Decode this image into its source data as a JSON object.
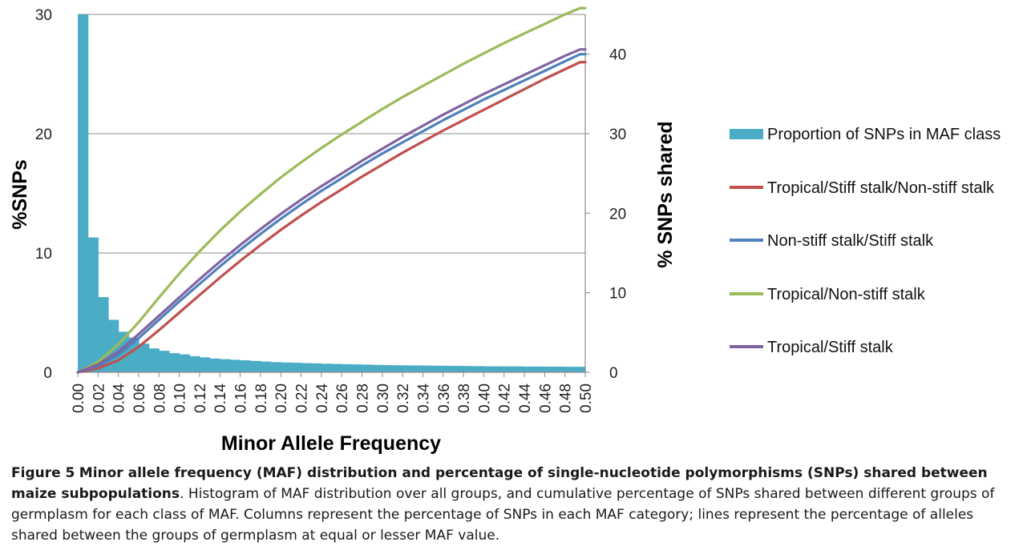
{
  "chart_data": {
    "type": "bar+line",
    "xlabel": "Minor Allele Frequency",
    "ylabel": "%SNPs",
    "y2label": "% SNPs shared",
    "ylim": [
      0,
      30
    ],
    "y2lim": [
      0,
      45
    ],
    "yticks": [
      0,
      10,
      20,
      30
    ],
    "y2ticks": [
      0,
      10,
      20,
      30,
      40
    ],
    "xlim": [
      0,
      0.5
    ],
    "xticks": [
      "0.00",
      "0.02",
      "0.04",
      "0.06",
      "0.08",
      "0.10",
      "0.12",
      "0.14",
      "0.16",
      "0.18",
      "0.20",
      "0.22",
      "0.24",
      "0.26",
      "0.28",
      "0.30",
      "0.32",
      "0.34",
      "0.36",
      "0.38",
      "0.40",
      "0.42",
      "0.44",
      "0.46",
      "0.48",
      "0.50"
    ],
    "grid": "horizontal",
    "legend_position": "right",
    "bars": {
      "name": "Proportion of SNPs in MAF class",
      "color": "#4bacc6",
      "bin_width": 0.01,
      "x_start": 0.0,
      "values": [
        30,
        11.3,
        6.3,
        4.4,
        3.4,
        2.9,
        2.4,
        2.0,
        1.8,
        1.6,
        1.5,
        1.35,
        1.25,
        1.15,
        1.1,
        1.05,
        1.0,
        0.95,
        0.9,
        0.85,
        0.82,
        0.8,
        0.77,
        0.75,
        0.72,
        0.7,
        0.68,
        0.66,
        0.64,
        0.62,
        0.6,
        0.59,
        0.58,
        0.57,
        0.56,
        0.55,
        0.54,
        0.53,
        0.52,
        0.51,
        0.5,
        0.5,
        0.49,
        0.49,
        0.48,
        0.48,
        0.47,
        0.47,
        0.46,
        0.46
      ]
    },
    "x": [
      0.0,
      0.02,
      0.04,
      0.06,
      0.08,
      0.1,
      0.12,
      0.14,
      0.16,
      0.18,
      0.2,
      0.22,
      0.24,
      0.26,
      0.28,
      0.3,
      0.32,
      0.34,
      0.36,
      0.38,
      0.4,
      0.42,
      0.44,
      0.46,
      0.48,
      0.495,
      0.5
    ],
    "series": [
      {
        "name": "Tropical/Stiff stalk/Non-stiff stalk",
        "color": "#c0504d",
        "values": [
          0,
          0.5,
          1.5,
          3.2,
          5.3,
          7.5,
          9.7,
          11.9,
          14.0,
          16.0,
          17.9,
          19.7,
          21.4,
          23.0,
          24.6,
          26.1,
          27.6,
          29.0,
          30.4,
          31.7,
          33.0,
          34.3,
          35.6,
          36.9,
          38.1,
          39.0,
          39.0
        ]
      },
      {
        "name": "Non-stiff stalk/Stiff stalk",
        "color": "#4f81bd",
        "values": [
          0,
          0.8,
          2.2,
          4.3,
          6.6,
          8.9,
          11.1,
          13.3,
          15.4,
          17.4,
          19.3,
          21.1,
          22.8,
          24.4,
          26.0,
          27.5,
          28.9,
          30.3,
          31.7,
          33.0,
          34.3,
          35.5,
          36.7,
          37.9,
          39.1,
          40.0,
          40.0
        ]
      },
      {
        "name": "Tropical/Non-stiff stalk",
        "color": "#9bbb59",
        "values": [
          0,
          1.3,
          3.5,
          6.3,
          9.4,
          12.4,
          15.2,
          17.8,
          20.2,
          22.4,
          24.5,
          26.4,
          28.2,
          29.9,
          31.5,
          33.1,
          34.6,
          36.0,
          37.4,
          38.8,
          40.1,
          41.4,
          42.6,
          43.8,
          45.0,
          45.8,
          45.8
        ]
      },
      {
        "name": "Tropical/Stiff stalk",
        "color": "#8064a2",
        "values": [
          0,
          1.0,
          2.6,
          4.8,
          7.1,
          9.4,
          11.7,
          13.9,
          16.0,
          18.0,
          19.9,
          21.7,
          23.4,
          25.0,
          26.6,
          28.1,
          29.6,
          31.0,
          32.4,
          33.7,
          35.0,
          36.2,
          37.4,
          38.6,
          39.8,
          40.6,
          40.6
        ]
      }
    ]
  },
  "caption": {
    "figure_label": "Figure 5",
    "title": "Minor allele frequency (MAF) distribution and percentage of single-nucleotide polymorphisms (SNPs) shared between maize subpopulations",
    "body": ". Histogram of MAF distribution over all groups, and cumulative percentage of SNPs shared between different groups of germplasm for each class of MAF. Columns represent the percentage of SNPs in each MAF category; lines represent the percentage of alleles shared between the groups of germplasm at equal or lesser MAF value."
  }
}
